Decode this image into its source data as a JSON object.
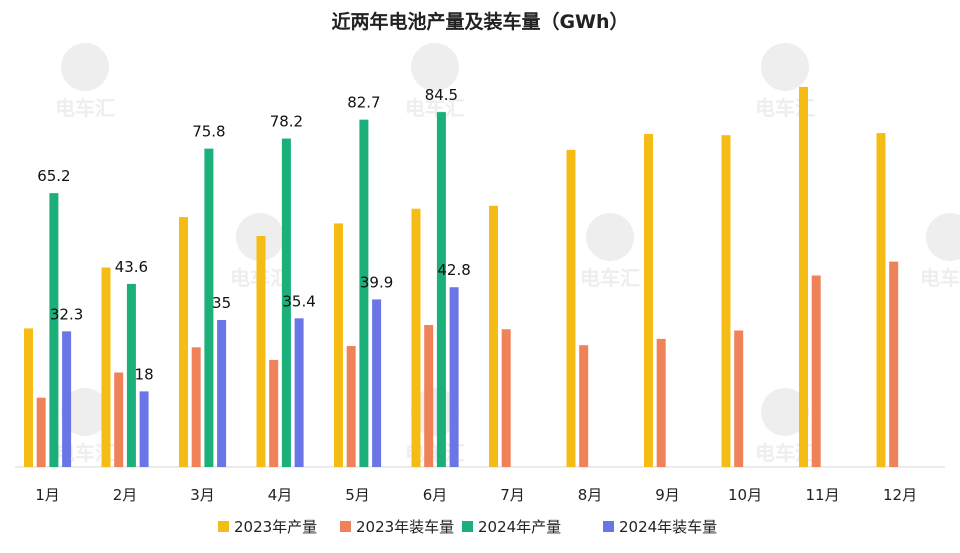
{
  "chart_data": {
    "type": "bar",
    "title": "近两年电池产量及装车量（GWh）",
    "categories": [
      "1月",
      "2月",
      "3月",
      "4月",
      "5月",
      "6月",
      "7月",
      "8月",
      "9月",
      "10月",
      "11月",
      "12月"
    ],
    "series": [
      {
        "name": "2023年产量",
        "color": "#F5BC16",
        "values": [
          33.0,
          47.5,
          59.5,
          55.0,
          58.0,
          61.5,
          62.2,
          75.5,
          79.3,
          79.0,
          90.5,
          79.5
        ]
      },
      {
        "name": "2023年装车量",
        "color": "#F0825A",
        "values": [
          16.5,
          22.5,
          28.5,
          25.5,
          28.8,
          33.8,
          32.8,
          29.0,
          30.5,
          32.5,
          45.6,
          48.9
        ]
      },
      {
        "name": "2024年产量",
        "color": "#1BB07A",
        "values": [
          65.2,
          43.6,
          75.8,
          78.2,
          82.7,
          84.5,
          null,
          null,
          null,
          null,
          null,
          null
        ]
      },
      {
        "name": "2024年装车量",
        "color": "#6A75E6",
        "values": [
          32.3,
          18,
          35,
          35.4,
          39.9,
          42.8,
          null,
          null,
          null,
          null,
          null,
          null
        ]
      }
    ],
    "data_labels": {
      "2024年产量": [
        "65.2",
        "43.6",
        "75.8",
        "78.2",
        "82.7",
        "84.5"
      ],
      "2024年装车量": [
        "32.3",
        "18",
        "35",
        "35.4",
        "39.9",
        "42.8"
      ]
    },
    "ylim": [
      0,
      100
    ],
    "grid": false,
    "legend": "bottom-center",
    "watermark": "电车汇"
  }
}
